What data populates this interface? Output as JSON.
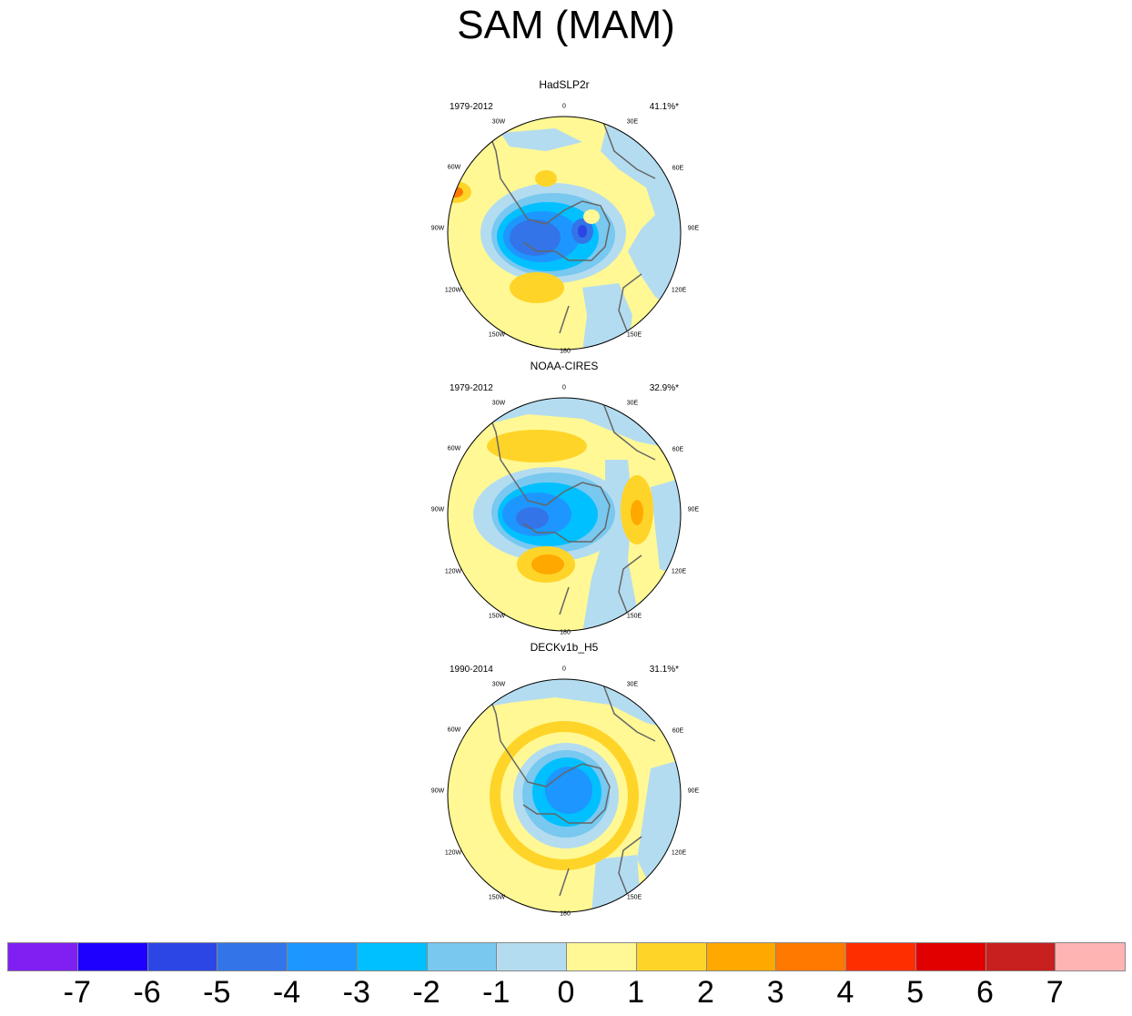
{
  "figure": {
    "title": "SAM (MAM)"
  },
  "chart_data": {
    "type": "heatmap",
    "title": "SAM (MAM)",
    "colorbar": {
      "levels": [
        "-7",
        "-6",
        "-5",
        "-4",
        "-3",
        "-2",
        "-1",
        "0",
        "1",
        "2",
        "3",
        "4",
        "5",
        "6",
        "7"
      ],
      "colors": [
        "#7f1ff2",
        "#1e00ff",
        "#2c46e6",
        "#3375e8",
        "#1e96ff",
        "#00c0ff",
        "#78c8f0",
        "#b4dcf0",
        "#fff894",
        "#ffd428",
        "#ffa800",
        "#ff7800",
        "#ff2e00",
        "#e00000",
        "#c8201e",
        "#ffb4b4"
      ]
    },
    "panels": [
      {
        "name": "HadSLP2r",
        "period": "1979-2012",
        "variance": "41.1%*"
      },
      {
        "name": "NOAA-CIRES",
        "period": "1979-2012",
        "variance": "32.9%*"
      },
      {
        "name": "DECKv1b_H5",
        "period": "1990-2014",
        "variance": "31.1%*"
      }
    ],
    "longitude_labels": [
      "0",
      "30E",
      "60E",
      "90E",
      "120E",
      "150E",
      "180",
      "150W",
      "120W",
      "90W",
      "60W",
      "30W"
    ]
  }
}
